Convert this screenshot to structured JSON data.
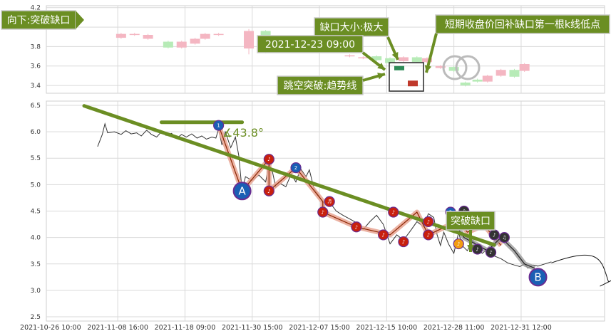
{
  "chart_data": {
    "type": "line",
    "subcharts": [
      {
        "name": "upper-candles",
        "yticks": [
          "4.2",
          "4.0",
          "3.8",
          "3.6",
          "3.4"
        ],
        "ylim": [
          3.32,
          4.22
        ],
        "candles": [
          {
            "x": 0.55,
            "o": 3.89,
            "c": 3.93,
            "h": 3.94,
            "l": 3.88
          },
          {
            "x": 0.75,
            "o": 3.92,
            "c": 3.93,
            "h": 3.94,
            "l": 3.91
          },
          {
            "x": 0.95,
            "o": 3.88,
            "c": 3.92,
            "h": 3.93,
            "l": 3.87
          },
          {
            "x": 1.25,
            "o": 3.85,
            "c": 3.79,
            "h": 3.86,
            "l": 3.78
          },
          {
            "x": 1.45,
            "o": 3.79,
            "c": 3.85,
            "h": 3.86,
            "l": 3.78
          },
          {
            "x": 1.65,
            "o": 3.83,
            "c": 3.88,
            "h": 3.89,
            "l": 3.82
          },
          {
            "x": 1.8,
            "o": 3.88,
            "c": 3.93,
            "h": 3.94,
            "l": 3.87
          },
          {
            "x": 2.0,
            "o": 3.92,
            "c": 3.93,
            "h": 3.94,
            "l": 3.91
          },
          {
            "x": 2.45,
            "o": 3.78,
            "c": 3.96,
            "h": 3.98,
            "l": 3.72
          },
          {
            "x": 2.7,
            "o": 3.96,
            "c": 3.74,
            "h": 3.97,
            "l": 3.73
          },
          {
            "x": 2.95,
            "o": 3.8,
            "c": 3.75,
            "h": 3.81,
            "l": 3.74
          },
          {
            "x": 3.15,
            "o": 3.75,
            "c": 3.84,
            "h": 3.85,
            "l": 3.74
          },
          {
            "x": 3.35,
            "o": 3.84,
            "c": 3.86,
            "h": 3.87,
            "l": 3.83
          },
          {
            "x": 3.55,
            "o": 3.85,
            "c": 3.79,
            "h": 3.86,
            "l": 3.78
          },
          {
            "x": 3.75,
            "o": 3.76,
            "c": 3.79,
            "h": 3.8,
            "l": 3.75
          },
          {
            "x": 3.95,
            "o": 3.7,
            "c": 3.71,
            "h": 3.72,
            "l": 3.69
          },
          {
            "x": 4.15,
            "o": 3.68,
            "c": 3.69,
            "h": 3.7,
            "l": 3.67
          },
          {
            "x": 4.35,
            "o": 3.7,
            "c": 3.66,
            "h": 3.71,
            "l": 3.65
          },
          {
            "x": 4.55,
            "o": 3.68,
            "c": 3.63,
            "h": 3.69,
            "l": 3.62
          },
          {
            "x": 4.75,
            "o": 3.65,
            "c": 3.69,
            "h": 3.7,
            "l": 3.64
          },
          {
            "x": 4.95,
            "o": 3.69,
            "c": 3.64,
            "h": 3.7,
            "l": 3.63
          },
          {
            "x": 5.1,
            "o": 3.64,
            "c": 3.68,
            "h": 3.69,
            "l": 3.63
          },
          {
            "x": 5.3,
            "o": 3.58,
            "c": 3.6,
            "h": 3.61,
            "l": 3.57
          },
          {
            "x": 5.5,
            "o": 3.59,
            "c": 3.55,
            "h": 3.6,
            "l": 3.54
          },
          {
            "x": 5.67,
            "o": 3.43,
            "c": 3.4,
            "h": 3.44,
            "l": 3.39
          },
          {
            "x": 5.85,
            "o": 3.46,
            "c": 3.44,
            "h": 3.47,
            "l": 3.43
          },
          {
            "x": 6.0,
            "o": 3.44,
            "c": 3.5,
            "h": 3.51,
            "l": 3.43
          },
          {
            "x": 6.2,
            "o": 3.5,
            "c": 3.56,
            "h": 3.57,
            "l": 3.49
          },
          {
            "x": 6.4,
            "o": 3.56,
            "c": 3.49,
            "h": 3.57,
            "l": 3.48
          },
          {
            "x": 6.55,
            "o": 3.55,
            "c": 3.62,
            "h": 3.63,
            "l": 3.54
          }
        ]
      },
      {
        "name": "lower-price",
        "yticks": [
          "6.5",
          "6.0",
          "5.5",
          "5.0",
          "4.5",
          "4.0",
          "3.5",
          "3.0",
          "2.5"
        ],
        "ylim": [
          2.42,
          6.58
        ],
        "price_line": [
          [
            0.2,
            5.72
          ],
          [
            0.27,
            5.95
          ],
          [
            0.31,
            6.15
          ],
          [
            0.35,
            5.98
          ],
          [
            0.45,
            6.0
          ],
          [
            0.55,
            5.95
          ],
          [
            0.62,
            6.02
          ],
          [
            0.7,
            5.96
          ],
          [
            0.78,
            5.98
          ],
          [
            0.85,
            5.92
          ],
          [
            0.93,
            6.03
          ],
          [
            1.0,
            5.95
          ],
          [
            1.08,
            5.9
          ],
          [
            1.15,
            6.0
          ],
          [
            1.22,
            5.93
          ],
          [
            1.3,
            5.97
          ],
          [
            1.38,
            5.88
          ],
          [
            1.45,
            5.95
          ],
          [
            1.52,
            5.9
          ],
          [
            1.6,
            5.96
          ],
          [
            1.68,
            5.88
          ],
          [
            1.75,
            5.92
          ],
          [
            1.82,
            5.86
          ],
          [
            1.9,
            5.9
          ],
          [
            1.96,
            5.88
          ],
          [
            2.0,
            6.05
          ],
          [
            2.05,
            5.75
          ],
          [
            2.1,
            6.0
          ],
          [
            2.18,
            5.7
          ],
          [
            2.25,
            5.9
          ],
          [
            2.3,
            5.55
          ],
          [
            2.35,
            4.88
          ],
          [
            2.4,
            5.15
          ],
          [
            2.5,
            5.08
          ],
          [
            2.6,
            5.18
          ],
          [
            2.7,
            5.05
          ],
          [
            2.75,
            5.4
          ],
          [
            2.8,
            5.25
          ],
          [
            2.85,
            4.95
          ],
          [
            2.92,
            5.02
          ],
          [
            3.0,
            4.96
          ],
          [
            3.08,
            5.2
          ],
          [
            3.15,
            5.05
          ],
          [
            3.22,
            5.3
          ],
          [
            3.3,
            5.15
          ],
          [
            3.35,
            5.28
          ],
          [
            3.42,
            4.92
          ],
          [
            3.5,
            4.78
          ],
          [
            3.55,
            4.65
          ],
          [
            3.6,
            4.72
          ],
          [
            3.68,
            4.62
          ],
          [
            3.75,
            4.5
          ],
          [
            3.85,
            4.42
          ],
          [
            3.95,
            4.35
          ],
          [
            4.05,
            4.28
          ],
          [
            4.15,
            4.15
          ],
          [
            4.25,
            4.3
          ],
          [
            4.35,
            4.42
          ],
          [
            4.45,
            4.25
          ],
          [
            4.55,
            3.88
          ],
          [
            4.65,
            4.05
          ],
          [
            4.75,
            3.95
          ],
          [
            4.85,
            4.12
          ],
          [
            4.95,
            4.3
          ],
          [
            5.05,
            4.2
          ],
          [
            5.12,
            4.45
          ],
          [
            5.2,
            4.38
          ],
          [
            5.25,
            4.05
          ],
          [
            5.3,
            3.85
          ],
          [
            5.35,
            4.1
          ],
          [
            5.42,
            3.88
          ],
          [
            5.5,
            3.7
          ],
          [
            5.57,
            4.1
          ],
          [
            5.62,
            3.85
          ],
          [
            5.7,
            3.75
          ],
          [
            5.78,
            3.95
          ],
          [
            5.85,
            3.82
          ],
          [
            5.92,
            3.7
          ],
          [
            6.0,
            3.78
          ],
          [
            6.1,
            3.65
          ],
          [
            6.2,
            3.6
          ],
          [
            6.3,
            3.52
          ],
          [
            6.4,
            3.48
          ],
          [
            6.48,
            3.45
          ],
          [
            6.55,
            3.5
          ],
          [
            6.6,
            3.42
          ],
          [
            6.68,
            3.48
          ],
          [
            6.75,
            3.46
          ],
          [
            6.85,
            3.5
          ],
          [
            6.95,
            3.54
          ]
        ],
        "trend_line": {
          "from": [
            0.0,
            6.49
          ],
          "to": [
            6.1,
            3.86
          ]
        },
        "horizontal_line": {
          "from": [
            1.15,
            6.18
          ],
          "to": [
            2.35,
            6.18
          ]
        },
        "angle_label": "∡43.8°",
        "projection_arc": {
          "from": [
            6.95,
            3.52
          ],
          "to": [
            7.8,
            3.16
          ]
        },
        "wave_red": [
          [
            2.0,
            6.12
          ],
          [
            2.35,
            4.88
          ],
          [
            2.75,
            5.48
          ],
          [
            2.75,
            4.88
          ],
          [
            3.15,
            5.32
          ],
          [
            3.55,
            4.68
          ],
          [
            3.55,
            4.48
          ],
          [
            4.05,
            4.2
          ],
          [
            4.55,
            4.05
          ],
          [
            4.95,
            4.48
          ],
          [
            5.12,
            4.05
          ],
          [
            5.57,
            4.32
          ],
          [
            5.7,
            4.1
          ],
          [
            5.95,
            4.23
          ],
          [
            6.2,
            3.85
          ]
        ],
        "wave_gray": [
          [
            5.4,
            4.48
          ],
          [
            5.65,
            4.0
          ],
          [
            6.0,
            3.75
          ],
          [
            6.2,
            4.0
          ],
          [
            6.4,
            3.75
          ],
          [
            6.55,
            3.5
          ],
          [
            6.7,
            3.42
          ]
        ],
        "wave_points": [
          {
            "x": 2.0,
            "y": 6.12,
            "label": "1",
            "color": "blue",
            "size": "small"
          },
          {
            "x": 2.35,
            "y": 4.88,
            "label": "A",
            "color": "blue",
            "size": "large"
          },
          {
            "x": 2.75,
            "y": 5.48,
            "label": "♪",
            "color": "red",
            "size": "small"
          },
          {
            "x": 2.75,
            "y": 4.88,
            "label": "♪",
            "color": "red",
            "size": "small"
          },
          {
            "x": 3.15,
            "y": 5.32,
            "label": "2",
            "color": "blue",
            "size": "small"
          },
          {
            "x": 3.55,
            "y": 4.48,
            "label": "♪",
            "color": "red",
            "size": "small"
          },
          {
            "x": 3.65,
            "y": 4.68,
            "label": "♬",
            "color": "red",
            "size": "small"
          },
          {
            "x": 4.05,
            "y": 4.2,
            "label": "♪",
            "color": "red",
            "size": "small"
          },
          {
            "x": 4.45,
            "y": 4.05,
            "label": "♪",
            "color": "red",
            "size": "small"
          },
          {
            "x": 4.6,
            "y": 4.48,
            "label": "♪",
            "color": "red",
            "size": "small"
          },
          {
            "x": 4.75,
            "y": 3.92,
            "label": "♪",
            "color": "red",
            "size": "small"
          },
          {
            "x": 5.12,
            "y": 4.05,
            "label": "♪",
            "color": "red",
            "size": "small"
          },
          {
            "x": 5.12,
            "y": 4.3,
            "label": "♪",
            "color": "red",
            "size": "small"
          },
          {
            "x": 5.45,
            "y": 4.48,
            "label": "3",
            "color": "blue",
            "size": "small"
          },
          {
            "x": 5.57,
            "y": 3.88,
            "label": "♪",
            "color": "orange",
            "size": "small"
          },
          {
            "x": 5.65,
            "y": 4.5,
            "label": "♪",
            "color": "dark",
            "size": "small"
          },
          {
            "x": 5.85,
            "y": 3.78,
            "label": "♪",
            "color": "dark",
            "size": "small"
          },
          {
            "x": 6.05,
            "y": 3.72,
            "label": "♪",
            "color": "dark",
            "size": "small"
          },
          {
            "x": 6.1,
            "y": 4.05,
            "label": "♪",
            "color": "dark",
            "size": "small"
          },
          {
            "x": 6.25,
            "y": 4.0,
            "label": "♫",
            "color": "dark",
            "size": "small"
          },
          {
            "x": 6.75,
            "y": 3.25,
            "label": "B",
            "color": "blue",
            "size": "large"
          }
        ]
      }
    ],
    "x_ticks": [
      "2021-10-26 10:00",
      "2021-11-08 16:00",
      "2021-11-18 09:00",
      "2021-11-30 15:00",
      "2021-12-07 15:00",
      "2021-12-15 10:00",
      "2021-12-28 11:00",
      "2021-12-31 12:00"
    ],
    "annotations": {
      "direction": "向下:突破缺口",
      "gap_size": "缺口大小:极大",
      "short_term": "短期收盘价回补缺口第一根k线低点",
      "timestamp": "2021-12-23 09:00",
      "jump": "跳空突破:趋势线",
      "breakout": "突破缺口"
    },
    "grid": true,
    "colors": {
      "trend": "#6b8e23",
      "annotation_bg": "#6b8e23",
      "annotation_border": "#cccccc",
      "up_candle": "#f4b6c2",
      "down_candle": "#b7ebb7",
      "gap_up": "#2e8b57",
      "gap_down": "#c0392b",
      "wave_red": "#e8a593",
      "wave_gray": "#999999",
      "pt_blue": "#1a5fb4",
      "pt_red": "#c8200e",
      "pt_dark": "#333333",
      "pt_orange": "#f39c12",
      "price": "#333333"
    }
  }
}
